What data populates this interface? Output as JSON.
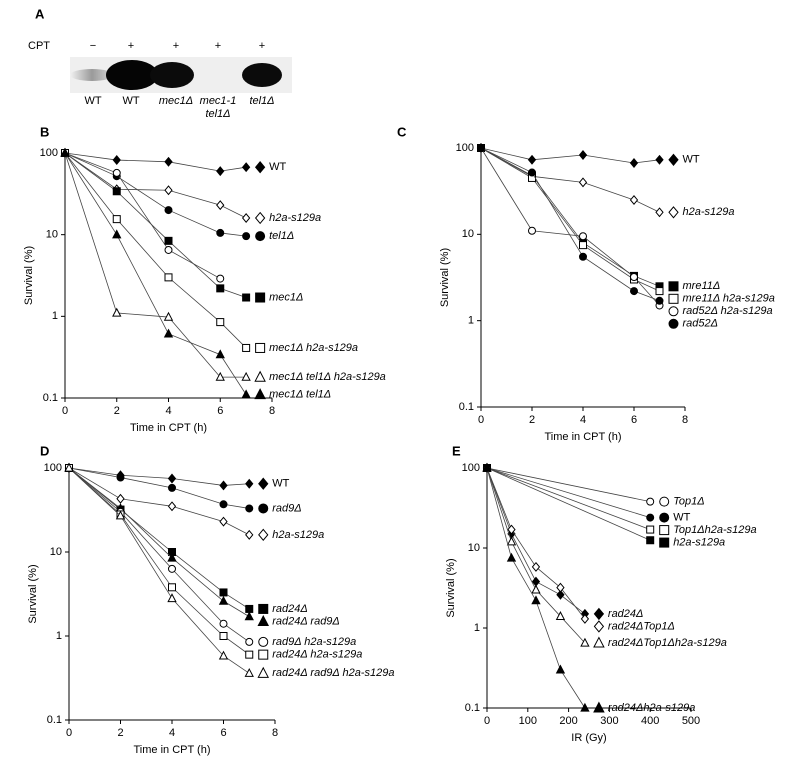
{
  "panel_a": {
    "label": "A",
    "treatment": "CPT",
    "lanes": [
      {
        "treatment": "−",
        "strain": [
          "WT"
        ]
      },
      {
        "treatment": "+",
        "strain": [
          "WT"
        ]
      },
      {
        "treatment": "+",
        "strain": [
          "mec1Δ"
        ]
      },
      {
        "treatment": "+",
        "strain": [
          "mec1-1",
          "tel1Δ"
        ]
      },
      {
        "treatment": "+",
        "strain": [
          "tel1Δ"
        ]
      }
    ]
  },
  "chart_data": [
    {
      "type": "line",
      "panel_label": "B",
      "xlabel": "Time in CPT (h)",
      "ylabel": "Survival (%)",
      "xlim": [
        0,
        8
      ],
      "xticks": [
        0,
        2,
        4,
        6,
        8
      ],
      "ylim": [
        0.1,
        100
      ],
      "yticks": [
        0.1,
        1,
        10,
        100
      ],
      "yscale": "log",
      "color": "#000000",
      "series": [
        {
          "name": "WT",
          "marker": "diamond",
          "filled": true,
          "italic": false,
          "x": [
            0,
            2,
            4,
            6,
            7
          ],
          "values": [
            100,
            82,
            78,
            60,
            67
          ]
        },
        {
          "name": "h2a-s129a",
          "marker": "diamond",
          "filled": false,
          "italic": true,
          "x": [
            0,
            2,
            4,
            6,
            7
          ],
          "values": [
            100,
            36,
            35,
            23,
            16
          ]
        },
        {
          "name": "tel1Δ",
          "marker": "circle",
          "filled": true,
          "italic": true,
          "x": [
            0,
            2,
            4,
            6,
            7
          ],
          "values": [
            100,
            52,
            20,
            10.5,
            9.6
          ]
        },
        {
          "name": null,
          "marker": "circle",
          "filled": false,
          "italic": true,
          "x": [
            0,
            2,
            4,
            6
          ],
          "values": [
            100,
            57,
            6.5,
            2.9
          ]
        },
        {
          "name": "mec1Δ",
          "marker": "square",
          "filled": true,
          "italic": true,
          "x": [
            0,
            2,
            4,
            6,
            7
          ],
          "values": [
            100,
            34,
            8.4,
            2.2,
            1.7
          ]
        },
        {
          "name": "mec1Δ h2a-s129a",
          "marker": "square",
          "filled": false,
          "italic": true,
          "x": [
            0,
            2,
            4,
            6,
            7
          ],
          "values": [
            100,
            15.5,
            3,
            0.85,
            0.41
          ]
        },
        {
          "name": "mec1Δ tel1Δ h2a-s129a",
          "marker": "triangle",
          "filled": false,
          "italic": true,
          "x": [
            0,
            2,
            4,
            6,
            7
          ],
          "values": [
            100,
            1.1,
            0.98,
            0.18,
            0.18
          ]
        },
        {
          "name": "mec1Δ tel1Δ",
          "marker": "triangle",
          "filled": true,
          "italic": true,
          "x": [
            0,
            2,
            4,
            6,
            7
          ],
          "values": [
            100,
            10,
            0.61,
            0.34,
            0.11
          ]
        }
      ]
    },
    {
      "type": "line",
      "panel_label": "C",
      "xlabel": "Time in CPT (h)",
      "ylabel": "Survival (%)",
      "xlim": [
        0,
        8
      ],
      "xticks": [
        0,
        2,
        4,
        6,
        8
      ],
      "ylim": [
        0.1,
        100
      ],
      "yticks": [
        0.1,
        1,
        10,
        100
      ],
      "yscale": "log",
      "color": "#000000",
      "series": [
        {
          "name": "WT",
          "marker": "diamond",
          "filled": true,
          "italic": false,
          "x": [
            0,
            2,
            4,
            6,
            7
          ],
          "values": [
            100,
            73,
            83,
            67,
            73
          ]
        },
        {
          "name": "h2a-s129a",
          "marker": "diamond",
          "filled": false,
          "italic": true,
          "x": [
            0,
            2,
            4,
            6,
            7
          ],
          "values": [
            100,
            47,
            40,
            25,
            18
          ]
        },
        {
          "name": "mre11Δ",
          "marker": "square",
          "filled": true,
          "italic": true,
          "x": [
            0,
            2,
            4,
            6,
            7
          ],
          "values": [
            100,
            48,
            8,
            3.3,
            2.5
          ]
        },
        {
          "name": "mre11Δ h2a-s129a",
          "marker": "square",
          "filled": false,
          "italic": true,
          "x": [
            0,
            2,
            4,
            6,
            7
          ],
          "values": [
            100,
            45,
            7.5,
            3,
            2.2
          ]
        },
        {
          "name": "rad52Δ h2a-s129a",
          "marker": "circle",
          "filled": false,
          "italic": true,
          "x": [
            0,
            2,
            4,
            6,
            7
          ],
          "values": [
            100,
            11,
            9.5,
            3.2,
            1.5
          ]
        },
        {
          "name": "rad52Δ",
          "marker": "circle",
          "filled": true,
          "italic": true,
          "x": [
            0,
            2,
            4,
            6,
            7
          ],
          "values": [
            100,
            52,
            5.5,
            2.2,
            1.7
          ]
        }
      ]
    },
    {
      "type": "line",
      "panel_label": "D",
      "xlabel": "Time in CPT (h)",
      "ylabel": "Survival (%)",
      "xlim": [
        0,
        8
      ],
      "xticks": [
        0,
        2,
        4,
        6,
        8
      ],
      "ylim": [
        0.1,
        100
      ],
      "yticks": [
        0.1,
        1,
        10,
        100
      ],
      "yscale": "log",
      "color": "#000000",
      "series": [
        {
          "name": "WT",
          "marker": "diamond",
          "filled": true,
          "italic": false,
          "x": [
            0,
            2,
            4,
            6,
            7
          ],
          "values": [
            100,
            82,
            75,
            62,
            65
          ]
        },
        {
          "name": "rad9Δ",
          "marker": "circle",
          "filled": true,
          "italic": true,
          "x": [
            0,
            2,
            4,
            6,
            7
          ],
          "values": [
            100,
            77,
            58,
            37,
            33
          ]
        },
        {
          "name": "h2a-s129a",
          "marker": "diamond",
          "filled": false,
          "italic": true,
          "x": [
            0,
            2,
            4,
            6,
            7
          ],
          "values": [
            100,
            43,
            35,
            23,
            16
          ]
        },
        {
          "name": "rad24Δ",
          "marker": "square",
          "filled": true,
          "italic": true,
          "x": [
            0,
            2,
            4,
            6,
            7
          ],
          "values": [
            100,
            32,
            10,
            3.3,
            2.1
          ]
        },
        {
          "name": "rad24Δ rad9Δ",
          "marker": "triangle",
          "filled": true,
          "italic": true,
          "x": [
            0,
            2,
            4,
            6,
            7
          ],
          "values": [
            100,
            33,
            8.5,
            2.6,
            1.7
          ]
        },
        {
          "name": "rad9Δ h2a-s129a",
          "marker": "circle",
          "filled": false,
          "italic": true,
          "x": [
            0,
            2,
            4,
            6,
            7
          ],
          "values": [
            100,
            30,
            6.3,
            1.4,
            0.85
          ]
        },
        {
          "name": "rad24Δ h2a-s129a",
          "marker": "square",
          "filled": false,
          "italic": true,
          "x": [
            0,
            2,
            4,
            6,
            7
          ],
          "values": [
            100,
            28,
            3.8,
            1,
            0.6
          ]
        },
        {
          "name": "rad24Δ rad9Δ h2a-s129a",
          "marker": "triangle",
          "filled": false,
          "italic": true,
          "x": [
            0,
            2,
            4,
            6,
            7
          ],
          "values": [
            100,
            27,
            2.8,
            0.58,
            0.36
          ]
        }
      ]
    },
    {
      "type": "line",
      "panel_label": "E",
      "xlabel": "IR (Gy)",
      "ylabel": "Survival (%)",
      "xlim": [
        0,
        500
      ],
      "xticks": [
        0,
        100,
        200,
        300,
        400,
        500
      ],
      "ylim": [
        0.1,
        100
      ],
      "yticks": [
        0.1,
        1,
        10,
        100
      ],
      "yscale": "log",
      "color": "#000000",
      "series": [
        {
          "name": "Top1Δ",
          "marker": "circle",
          "filled": false,
          "italic": true,
          "x": [
            0,
            400
          ],
          "values": [
            100,
            38
          ]
        },
        {
          "name": "WT",
          "marker": "circle",
          "filled": true,
          "italic": false,
          "x": [
            0,
            400
          ],
          "values": [
            100,
            24
          ]
        },
        {
          "name": "Top1Δh2a-s129a",
          "marker": "square",
          "filled": false,
          "italic": true,
          "x": [
            0,
            400
          ],
          "values": [
            100,
            17
          ]
        },
        {
          "name": "h2a-s129a",
          "marker": "square",
          "filled": true,
          "italic": true,
          "x": [
            0,
            400
          ],
          "values": [
            100,
            12.5
          ]
        },
        {
          "name": "rad24Δ",
          "marker": "diamond",
          "filled": true,
          "italic": true,
          "x": [
            0,
            60,
            120,
            180,
            240
          ],
          "values": [
            100,
            15,
            3.8,
            2.6,
            1.5
          ]
        },
        {
          "name": "rad24ΔTop1Δ",
          "marker": "diamond",
          "filled": false,
          "italic": true,
          "x": [
            0,
            60,
            120,
            180,
            240
          ],
          "values": [
            100,
            17,
            5.8,
            3.2,
            1.3
          ]
        },
        {
          "name": "rad24ΔTop1Δh2a-s129a",
          "marker": "triangle",
          "filled": false,
          "italic": true,
          "x": [
            0,
            60,
            120,
            180,
            240
          ],
          "values": [
            100,
            12,
            3,
            1.4,
            0.65
          ]
        },
        {
          "name": "rad24Δh2a-s129a",
          "marker": "triangle",
          "filled": true,
          "italic": true,
          "x": [
            0,
            60,
            120,
            180,
            240
          ],
          "values": [
            100,
            7.5,
            2.2,
            0.3,
            0.1
          ]
        }
      ]
    }
  ]
}
